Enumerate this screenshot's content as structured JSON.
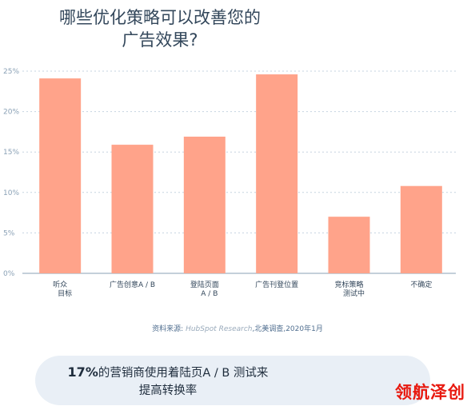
{
  "title_lines": [
    "哪些优化策略可以改善您的",
    "广告效果?"
  ],
  "chart_data": {
    "type": "bar",
    "title": "哪些优化策略可以改善您的广告效果?",
    "categories": [
      [
        "听众",
        "目标"
      ],
      [
        "广告创意A / B"
      ],
      [
        "登陆页面",
        "A / B"
      ],
      [
        "广告刊登位置"
      ],
      [
        "竞标策略",
        "测试中"
      ],
      [
        "不确定"
      ]
    ],
    "values": [
      24.1,
      15.9,
      16.9,
      24.6,
      7.0,
      10.8
    ],
    "y_ticks": [
      0,
      5,
      10,
      15,
      20,
      25
    ],
    "y_tick_labels": [
      "0%",
      "5%",
      "10%",
      "15%",
      "20%",
      "25%"
    ],
    "ylim": [
      0,
      25
    ],
    "xlabel": "",
    "ylabel": "",
    "grid": true,
    "bar_color": "#ffa38a",
    "grid_color": "#c5d3e0",
    "axis_color": "#8aa1b6"
  },
  "source": {
    "prefix": "资料来源:",
    "italic": "HubSpot Research",
    "suffix": ",北美调查,",
    "date": "2020年1月"
  },
  "callout": {
    "stat": "17%",
    "line1_rest": "的营销商使用着陆页A / B 测试来",
    "line2": "提高转换率"
  },
  "watermark": "领航泽创"
}
